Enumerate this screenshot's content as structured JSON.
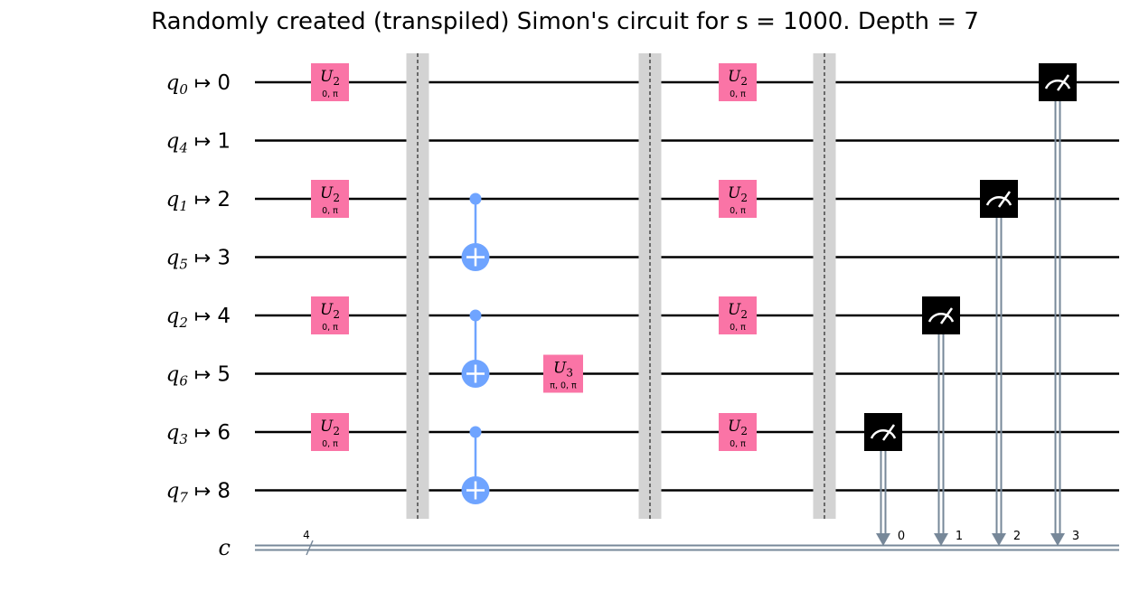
{
  "title": "Randomly created (transpiled) Simon's circuit for s = 1000. Depth = 7",
  "colors": {
    "u_gate": "#fa74a6",
    "cnot": "#6fa4ff",
    "barrier": "#d3d3d3",
    "measure": "#000000",
    "classical": "#778899",
    "wire": "#000000"
  },
  "qubits": [
    {
      "name": "q",
      "sub": "0",
      "target": "0"
    },
    {
      "name": "q",
      "sub": "4",
      "target": "1"
    },
    {
      "name": "q",
      "sub": "1",
      "target": "2"
    },
    {
      "name": "q",
      "sub": "5",
      "target": "3"
    },
    {
      "name": "q",
      "sub": "2",
      "target": "4"
    },
    {
      "name": "q",
      "sub": "6",
      "target": "5"
    },
    {
      "name": "q",
      "sub": "3",
      "target": "6"
    },
    {
      "name": "q",
      "sub": "7",
      "target": "8"
    }
  ],
  "classical_register": {
    "name": "c",
    "width": "4"
  },
  "columns": [
    {
      "type": "gates",
      "gates": [
        {
          "wire": 0,
          "name": "U",
          "sub": "2",
          "params": "0, π"
        },
        {
          "wire": 2,
          "name": "U",
          "sub": "2",
          "params": "0, π"
        },
        {
          "wire": 4,
          "name": "U",
          "sub": "2",
          "params": "0, π"
        },
        {
          "wire": 6,
          "name": "U",
          "sub": "2",
          "params": "0, π"
        }
      ]
    },
    {
      "type": "barrier"
    },
    {
      "type": "cnots",
      "cnots": [
        {
          "control": 2,
          "target": 3
        },
        {
          "control": 4,
          "target": 5
        },
        {
          "control": 6,
          "target": 7
        }
      ]
    },
    {
      "type": "gates",
      "gates": [
        {
          "wire": 5,
          "name": "U",
          "sub": "3",
          "params": "π, 0, π"
        }
      ]
    },
    {
      "type": "barrier"
    },
    {
      "type": "gates",
      "gates": [
        {
          "wire": 0,
          "name": "U",
          "sub": "2",
          "params": "0, π"
        },
        {
          "wire": 2,
          "name": "U",
          "sub": "2",
          "params": "0, π"
        },
        {
          "wire": 4,
          "name": "U",
          "sub": "2",
          "params": "0, π"
        },
        {
          "wire": 6,
          "name": "U",
          "sub": "2",
          "params": "0, π"
        }
      ]
    },
    {
      "type": "barrier"
    },
    {
      "type": "measure",
      "wire": 6,
      "bit": "0"
    },
    {
      "type": "measure",
      "wire": 4,
      "bit": "1"
    },
    {
      "type": "measure",
      "wire": 2,
      "bit": "2"
    },
    {
      "type": "measure",
      "wire": 0,
      "bit": "3"
    }
  ]
}
